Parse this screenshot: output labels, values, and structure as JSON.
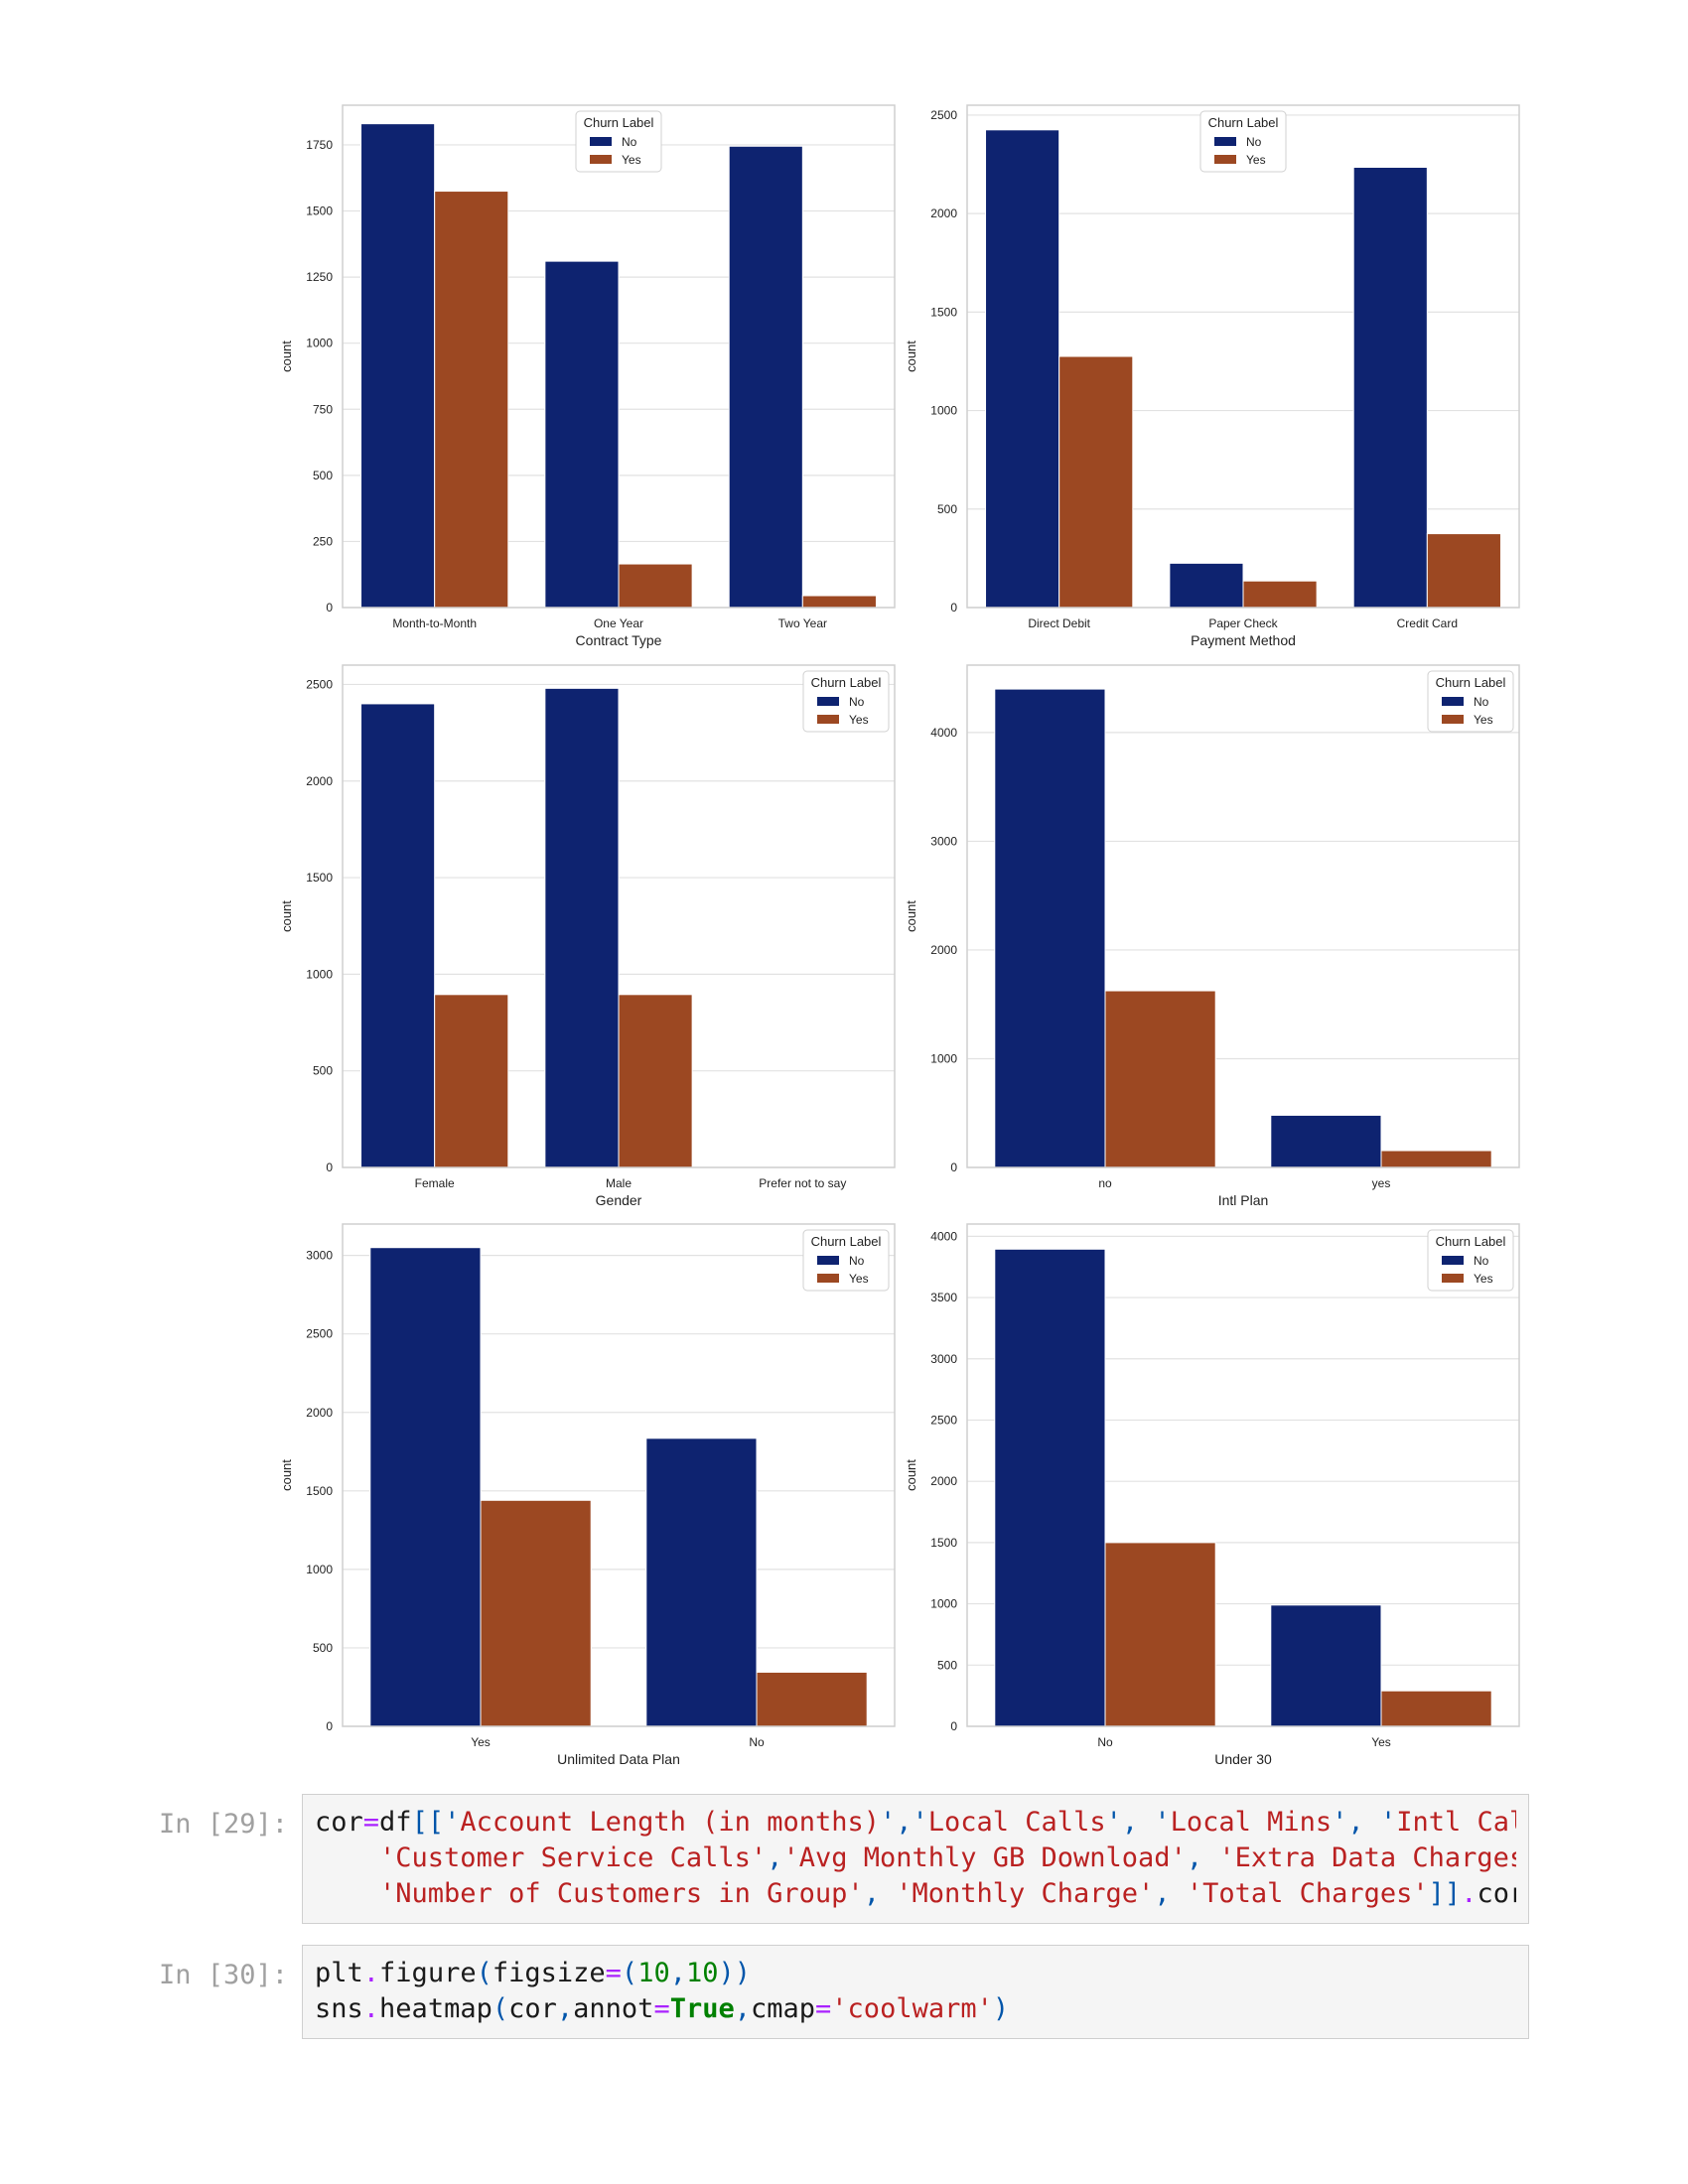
{
  "chart_data": [
    {
      "type": "bar",
      "xlabel": "Contract Type",
      "ylabel": "count",
      "categories": [
        "Month-to-Month",
        "One Year",
        "Two Year"
      ],
      "series": [
        {
          "name": "No",
          "values": [
            1830,
            1310,
            1745
          ]
        },
        {
          "name": "Yes",
          "values": [
            1575,
            165,
            45
          ]
        }
      ],
      "ylim": [
        0,
        1900
      ],
      "yticks": [
        0,
        250,
        500,
        750,
        1000,
        1250,
        1500,
        1750
      ],
      "legend": {
        "title": "Churn Label",
        "position": "upper-center"
      }
    },
    {
      "type": "bar",
      "xlabel": "Payment Method",
      "ylabel": "count",
      "categories": [
        "Direct Debit",
        "Paper Check",
        "Credit Card"
      ],
      "series": [
        {
          "name": "No",
          "values": [
            2425,
            225,
            2235
          ]
        },
        {
          "name": "Yes",
          "values": [
            1275,
            135,
            375
          ]
        }
      ],
      "ylim": [
        0,
        2550
      ],
      "yticks": [
        0,
        500,
        1000,
        1500,
        2000,
        2500
      ],
      "legend": {
        "title": "Churn Label",
        "position": "upper-center"
      }
    },
    {
      "type": "bar",
      "xlabel": "Gender",
      "ylabel": "count",
      "categories": [
        "Female",
        "Male",
        "Prefer not to say"
      ],
      "series": [
        {
          "name": "No",
          "values": [
            2400,
            2480,
            0
          ]
        },
        {
          "name": "Yes",
          "values": [
            895,
            895,
            0
          ]
        }
      ],
      "ylim": [
        0,
        2600
      ],
      "yticks": [
        0,
        500,
        1000,
        1500,
        2000,
        2500
      ],
      "legend": {
        "title": "Churn Label",
        "position": "upper-right"
      }
    },
    {
      "type": "bar",
      "xlabel": "Intl Plan",
      "ylabel": "count",
      "categories": [
        "no",
        "yes"
      ],
      "series": [
        {
          "name": "No",
          "values": [
            4400,
            480
          ]
        },
        {
          "name": "Yes",
          "values": [
            1625,
            155
          ]
        }
      ],
      "ylim": [
        0,
        4620
      ],
      "yticks": [
        0,
        1000,
        2000,
        3000,
        4000
      ],
      "legend": {
        "title": "Churn Label",
        "position": "upper-right"
      }
    },
    {
      "type": "bar",
      "xlabel": "Unlimited Data Plan",
      "ylabel": "count",
      "categories": [
        "Yes",
        "No"
      ],
      "series": [
        {
          "name": "No",
          "values": [
            3050,
            1835
          ]
        },
        {
          "name": "Yes",
          "values": [
            1440,
            345
          ]
        }
      ],
      "ylim": [
        0,
        3200
      ],
      "yticks": [
        0,
        500,
        1000,
        1500,
        2000,
        2500,
        3000
      ],
      "legend": {
        "title": "Churn Label",
        "position": "upper-right"
      }
    },
    {
      "type": "bar",
      "xlabel": "Under 30",
      "ylabel": "count",
      "categories": [
        "No",
        "Yes"
      ],
      "series": [
        {
          "name": "No",
          "values": [
            3895,
            990
          ]
        },
        {
          "name": "Yes",
          "values": [
            1500,
            290
          ]
        }
      ],
      "ylim": [
        0,
        4100
      ],
      "yticks": [
        0,
        500,
        1000,
        1500,
        2000,
        2500,
        3000,
        3500,
        4000
      ],
      "legend": {
        "title": "Churn Label",
        "position": "upper-right"
      }
    }
  ],
  "colors": {
    "No": "#0e2370",
    "Yes": "#9c4822",
    "grid": "#e2e2e2",
    "frame": "#cfcfcf"
  },
  "cells": [
    {
      "prompt": "In [29]:",
      "lines": [
        [
          [
            "",
            "cor"
          ],
          [
            "o",
            "="
          ],
          [
            "",
            "df"
          ],
          [
            "p",
            "[['"
          ],
          [
            "s",
            "Account Length (in months)"
          ],
          [
            "p",
            "','"
          ],
          [
            "s",
            "Local Calls"
          ],
          [
            "p",
            "', '"
          ],
          [
            "s",
            "Local Mins"
          ],
          [
            "p",
            "', '"
          ],
          [
            "s",
            "Intl Call"
          ]
        ],
        [
          [
            "",
            "    "
          ],
          [
            "s",
            "'Customer Service Calls'"
          ],
          [
            "p",
            ","
          ],
          [
            "s",
            "'Avg Monthly GB Download'"
          ],
          [
            "p",
            ", "
          ],
          [
            "s",
            "'Extra Data Charges'"
          ]
        ],
        [
          [
            "",
            "    "
          ],
          [
            "s",
            "'Number of Customers in Group'"
          ],
          [
            "p",
            ", "
          ],
          [
            "s",
            "'Monthly Charge'"
          ],
          [
            "p",
            ", "
          ],
          [
            "s",
            "'Total Charges'"
          ],
          [
            "p",
            "]]"
          ],
          [
            "o",
            "."
          ],
          [
            "",
            "corr"
          ]
        ]
      ]
    },
    {
      "prompt": "In [30]:",
      "lines": [
        [
          [
            "",
            "plt"
          ],
          [
            "o",
            "."
          ],
          [
            "",
            "figure"
          ],
          [
            "p",
            "("
          ],
          [
            "",
            "figsize"
          ],
          [
            "o",
            "="
          ],
          [
            "p",
            "("
          ],
          [
            "n",
            "10"
          ],
          [
            "p",
            ","
          ],
          [
            "n",
            "10"
          ],
          [
            "p",
            "))"
          ]
        ],
        [
          [
            "",
            "sns"
          ],
          [
            "o",
            "."
          ],
          [
            "",
            "heatmap"
          ],
          [
            "p",
            "("
          ],
          [
            "",
            "cor"
          ],
          [
            "p",
            ","
          ],
          [
            "",
            "annot"
          ],
          [
            "o",
            "="
          ],
          [
            "k",
            "True"
          ],
          [
            "p",
            ","
          ],
          [
            "",
            "cmap"
          ],
          [
            "o",
            "="
          ],
          [
            "s",
            "'coolwarm'"
          ],
          [
            "p",
            ")"
          ]
        ]
      ]
    }
  ]
}
